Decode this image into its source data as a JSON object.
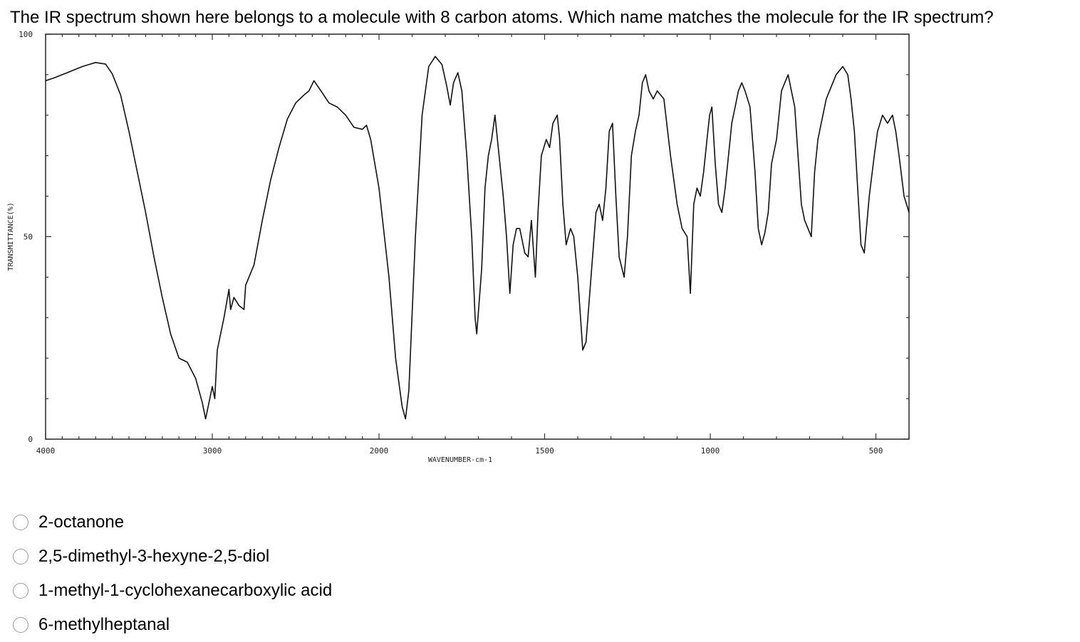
{
  "question": {
    "text": "The IR spectrum shown here belongs to a molecule with 8 carbon atoms.  Which name matches the molecule for the IR spectrum?"
  },
  "chart_data": {
    "type": "line",
    "xlabel": "WAVENUMBER-cm-1",
    "ylabel": "TRANSMITTANCE(%)",
    "xlim": [
      4000,
      400
    ],
    "ylim": [
      0,
      100
    ],
    "xticks": [
      4000,
      3000,
      2000,
      1500,
      1000,
      500
    ],
    "x_tick_labels": [
      "4000",
      "3000",
      "2000",
      "1500",
      "1000",
      "500"
    ],
    "yticks": [
      0,
      50,
      100
    ],
    "y_tick_labels": [
      "0",
      "50",
      "100"
    ],
    "grid": false,
    "series": [
      {
        "values": [
          [
            4000,
            88.5
          ],
          [
            3950,
            89.2
          ],
          [
            3870,
            90.5
          ],
          [
            3780,
            92.0
          ],
          [
            3700,
            93.0
          ],
          [
            3640,
            92.6
          ],
          [
            3600,
            90.2
          ],
          [
            3550,
            85.0
          ],
          [
            3500,
            76.0
          ],
          [
            3450,
            66.0
          ],
          [
            3400,
            56.0
          ],
          [
            3350,
            45.0
          ],
          [
            3300,
            35.0
          ],
          [
            3250,
            26.0
          ],
          [
            3200,
            20.0
          ],
          [
            3150,
            19.0
          ],
          [
            3100,
            15.0
          ],
          [
            3060,
            9.0
          ],
          [
            3040,
            5.0
          ],
          [
            3020,
            9.0
          ],
          [
            3000,
            13.0
          ],
          [
            2985,
            10.0
          ],
          [
            2970,
            22.0
          ],
          [
            2930,
            30.0
          ],
          [
            2900,
            37.0
          ],
          [
            2890,
            32.0
          ],
          [
            2870,
            35.0
          ],
          [
            2840,
            33.0
          ],
          [
            2810,
            32.0
          ],
          [
            2800,
            38.0
          ],
          [
            2750,
            43.0
          ],
          [
            2700,
            54.0
          ],
          [
            2650,
            64.0
          ],
          [
            2600,
            72.0
          ],
          [
            2550,
            79.0
          ],
          [
            2500,
            83.0
          ],
          [
            2450,
            85.0
          ],
          [
            2420,
            86.0
          ],
          [
            2390,
            88.5
          ],
          [
            2340,
            85.5
          ],
          [
            2300,
            83.0
          ],
          [
            2250,
            82.0
          ],
          [
            2200,
            80.0
          ],
          [
            2150,
            77.0
          ],
          [
            2100,
            76.5
          ],
          [
            2075,
            77.5
          ],
          [
            2050,
            74.0
          ],
          [
            2000,
            62.0
          ],
          [
            1970,
            40.0
          ],
          [
            1950,
            20.0
          ],
          [
            1930,
            8.0
          ],
          [
            1920,
            5.0
          ],
          [
            1910,
            12.0
          ],
          [
            1890,
            50.0
          ],
          [
            1870,
            80.0
          ],
          [
            1850,
            92.0
          ],
          [
            1830,
            94.5
          ],
          [
            1810,
            92.5
          ],
          [
            1795,
            87.0
          ],
          [
            1785,
            82.5
          ],
          [
            1775,
            88.0
          ],
          [
            1762,
            90.5
          ],
          [
            1750,
            86.0
          ],
          [
            1735,
            70.0
          ],
          [
            1720,
            50.0
          ],
          [
            1710,
            30.0
          ],
          [
            1705,
            26.0
          ],
          [
            1690,
            42.0
          ],
          [
            1680,
            62.0
          ],
          [
            1670,
            70.0
          ],
          [
            1660,
            74.0
          ],
          [
            1650,
            80.0
          ],
          [
            1640,
            72.0
          ],
          [
            1625,
            60.0
          ],
          [
            1615,
            50.0
          ],
          [
            1605,
            36.0
          ],
          [
            1595,
            48.0
          ],
          [
            1585,
            52.0
          ],
          [
            1575,
            52.0
          ],
          [
            1560,
            46.0
          ],
          [
            1550,
            45.0
          ],
          [
            1540,
            54.0
          ],
          [
            1528,
            40.0
          ],
          [
            1520,
            56.0
          ],
          [
            1510,
            70.0
          ],
          [
            1495,
            74.0
          ],
          [
            1485,
            72.0
          ],
          [
            1475,
            78.0
          ],
          [
            1462,
            80.0
          ],
          [
            1455,
            74.5
          ],
          [
            1445,
            58.0
          ],
          [
            1435,
            48.0
          ],
          [
            1422,
            52.0
          ],
          [
            1412,
            50.0
          ],
          [
            1400,
            40.0
          ],
          [
            1385,
            22.0
          ],
          [
            1375,
            24.0
          ],
          [
            1360,
            40.0
          ],
          [
            1345,
            56.0
          ],
          [
            1335,
            58.0
          ],
          [
            1325,
            54.0
          ],
          [
            1315,
            62.0
          ],
          [
            1305,
            76.0
          ],
          [
            1295,
            78.0
          ],
          [
            1285,
            60.0
          ],
          [
            1275,
            45.0
          ],
          [
            1260,
            40.0
          ],
          [
            1250,
            50.0
          ],
          [
            1238,
            70.0
          ],
          [
            1226,
            76.0
          ],
          [
            1215,
            80.0
          ],
          [
            1205,
            88.0
          ],
          [
            1195,
            90.0
          ],
          [
            1185,
            86.0
          ],
          [
            1172,
            84.0
          ],
          [
            1160,
            86.0
          ],
          [
            1140,
            84.0
          ],
          [
            1120,
            70.0
          ],
          [
            1100,
            58.0
          ],
          [
            1085,
            52.0
          ],
          [
            1070,
            50.0
          ],
          [
            1060,
            36.0
          ],
          [
            1050,
            58.0
          ],
          [
            1040,
            62.0
          ],
          [
            1030,
            60.0
          ],
          [
            1020,
            66.0
          ],
          [
            1010,
            74.0
          ],
          [
            1002,
            80.0
          ],
          [
            995,
            82.0
          ],
          [
            985,
            68.0
          ],
          [
            975,
            58.0
          ],
          [
            965,
            56.0
          ],
          [
            955,
            62.0
          ],
          [
            945,
            70.0
          ],
          [
            935,
            78.0
          ],
          [
            925,
            82.0
          ],
          [
            915,
            86.0
          ],
          [
            905,
            88.0
          ],
          [
            895,
            86.0
          ],
          [
            880,
            82.0
          ],
          [
            865,
            66.0
          ],
          [
            855,
            52.0
          ],
          [
            845,
            48.0
          ],
          [
            835,
            51.0
          ],
          [
            825,
            56.0
          ],
          [
            815,
            68.0
          ],
          [
            800,
            74.0
          ],
          [
            785,
            86.0
          ],
          [
            775,
            88.0
          ],
          [
            765,
            90.0
          ],
          [
            755,
            86.0
          ],
          [
            745,
            82.0
          ],
          [
            735,
            70.0
          ],
          [
            725,
            58.0
          ],
          [
            715,
            54.0
          ],
          [
            705,
            52.0
          ],
          [
            695,
            50.0
          ],
          [
            685,
            66.0
          ],
          [
            675,
            74.0
          ],
          [
            660,
            80.0
          ],
          [
            650,
            84.0
          ],
          [
            640,
            86.0
          ],
          [
            620,
            90.0
          ],
          [
            600,
            92.0
          ],
          [
            585,
            90.0
          ],
          [
            575,
            84.0
          ],
          [
            565,
            76.0
          ],
          [
            555,
            62.0
          ],
          [
            545,
            48.0
          ],
          [
            535,
            46.0
          ],
          [
            520,
            60.0
          ],
          [
            505,
            70.0
          ],
          [
            495,
            76.0
          ],
          [
            480,
            80.0
          ],
          [
            465,
            78.0
          ],
          [
            450,
            80.0
          ],
          [
            440,
            76.0
          ],
          [
            430,
            70.0
          ],
          [
            415,
            60.0
          ],
          [
            400,
            56.0
          ]
        ]
      }
    ]
  },
  "options": [
    {
      "label": "2-octanone"
    },
    {
      "label": "2,5-dimethyl-3-hexyne-2,5-diol"
    },
    {
      "label": "1-methyl-1-cyclohexanecarboxylic acid"
    },
    {
      "label": "6-methylheptanal"
    }
  ]
}
